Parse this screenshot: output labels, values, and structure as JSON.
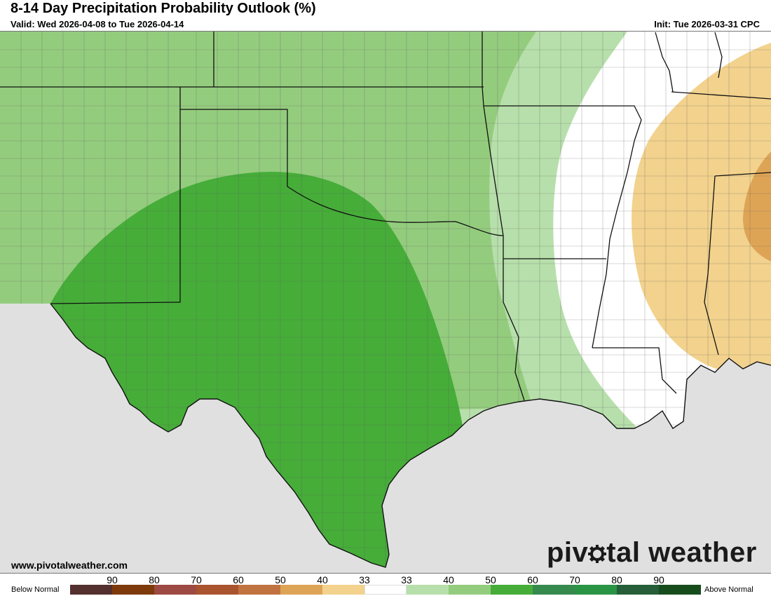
{
  "header": {
    "title": "8-14 Day Precipitation Probability Outlook (%)",
    "valid": "Valid: Wed 2026-04-08 to Tue 2026-04-14",
    "init": "Init: Tue 2026-03-31 CPC"
  },
  "footer": {
    "website": "www.pivotalweather.com",
    "brand": "pivotal weather"
  },
  "legend": {
    "left_label": "Below Normal",
    "right_label": "Above Normal",
    "ticks": [
      "90",
      "80",
      "70",
      "60",
      "50",
      "40",
      "33",
      "33",
      "40",
      "50",
      "60",
      "70",
      "80",
      "90"
    ],
    "colors": [
      "#54302e",
      "#7e3a0a",
      "#9c4a43",
      "#a9532f",
      "#c0733f",
      "#dea456",
      "#f2d28d",
      "#ffffff",
      "#b7dfab",
      "#94cc7e",
      "#46ad39",
      "#378a4e",
      "#2a9445",
      "#255e38",
      "#174d1d"
    ]
  },
  "map": {
    "background_color": "#ffffff",
    "no_data_color": "#e0e0e0",
    "above_normal_colors": {
      "p33_40": "#b7dfab",
      "p40_50": "#94cc7e",
      "p50_60": "#46ad39"
    },
    "below_normal_colors": {
      "p33_40": "#f2d28d",
      "p40_50": "#dea456"
    }
  }
}
